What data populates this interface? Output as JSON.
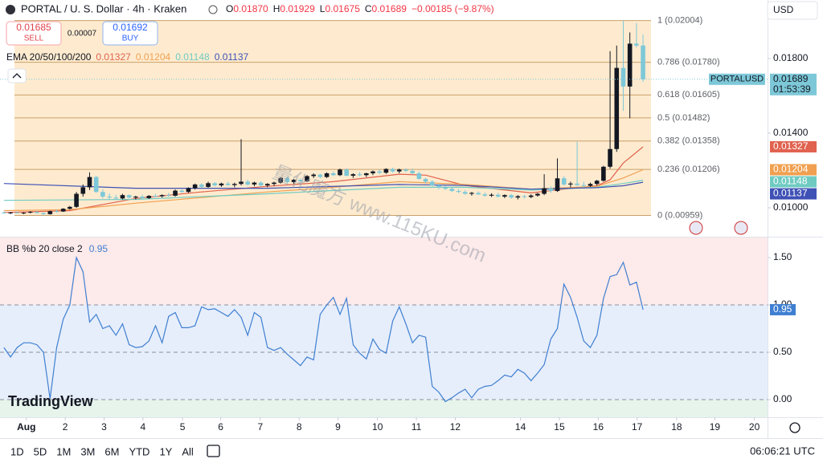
{
  "header": {
    "symbol": "PORTAL / U. S. Dollar · 4h · Kraken",
    "ohlc": [
      {
        "label": "O",
        "value": "0.01870"
      },
      {
        "label": "H",
        "value": "0.01929"
      },
      {
        "label": "L",
        "value": "0.01675"
      },
      {
        "label": "C",
        "value": "0.01689"
      }
    ],
    "change": "−0.00185 (−9.87%)",
    "currency": "USD"
  },
  "trade": {
    "sell_price": "0.01685",
    "sell_label": "SELL",
    "spread": "0.00007",
    "buy_price": "0.01692",
    "buy_label": "BUY"
  },
  "ema_legend": {
    "title": "EMA 20/50/100/200"
  },
  "price_tag": {
    "symbol": "PORTALUSD",
    "countdown": "01:53:39"
  },
  "watermark": "量化魔方 www.115KU.com",
  "logo": "TradingView",
  "toolbar": {
    "ranges": [
      "1D",
      "5D",
      "1M",
      "3M",
      "6M",
      "YTD",
      "1Y",
      "All"
    ],
    "time": "06:06:21 UTC"
  },
  "chart_data": [
    {
      "type": "candlestick",
      "up_color": "#131722",
      "down_color": "#7dc8d8",
      "xlim": [
        -0.6,
        115.9
      ],
      "ylim": [
        0.00845,
        0.02114
      ],
      "yticks": [
        {
          "value": 0.01,
          "label": "0.01000"
        },
        {
          "value": 0.014,
          "label": "0.01400"
        },
        {
          "value": 0.018,
          "label": "0.01800"
        }
      ],
      "fib_color": "#c9a06a",
      "fib_levels": [
        {
          "label": "1 (0.02004)",
          "value": 0.02004
        },
        {
          "label": "0.786 (0.01780)",
          "value": 0.0178
        },
        {
          "label": "0.618 (0.01605)",
          "value": 0.01605
        },
        {
          "label": "0.5 (0.01482)",
          "value": 0.01482
        },
        {
          "label": "0.382 (0.01358)",
          "value": 0.01358
        },
        {
          "label": "0.236 (0.01206)",
          "value": 0.01206
        },
        {
          "label": "0 (0.00959)",
          "value": 0.00959
        }
      ],
      "ohlc": [
        [
          0.00975,
          0.0098,
          0.00968,
          0.00972
        ],
        [
          0.00972,
          0.00978,
          0.00966,
          0.00975
        ],
        [
          0.00975,
          0.00979,
          0.0097,
          0.00971
        ],
        [
          0.00971,
          0.00976,
          0.00966,
          0.00974
        ],
        [
          0.00974,
          0.00982,
          0.0097,
          0.00978
        ],
        [
          0.00978,
          0.00981,
          0.00969,
          0.00972
        ],
        [
          0.00972,
          0.00975,
          0.00962,
          0.00966
        ],
        [
          0.00966,
          0.00985,
          0.00964,
          0.00982
        ],
        [
          0.00982,
          0.0099,
          0.00975,
          0.0098
        ],
        [
          0.0098,
          0.00998,
          0.00978,
          0.00995
        ],
        [
          0.00995,
          0.0101,
          0.0099,
          0.01005
        ],
        [
          0.01005,
          0.01085,
          0.01,
          0.01075
        ],
        [
          0.01075,
          0.01125,
          0.0106,
          0.0111
        ],
        [
          0.0111,
          0.0119,
          0.01095,
          0.01165
        ],
        [
          0.01165,
          0.01172,
          0.0108,
          0.01085
        ],
        [
          0.01085,
          0.011,
          0.0105,
          0.0106
        ],
        [
          0.0106,
          0.01078,
          0.01045,
          0.01055
        ],
        [
          0.01055,
          0.0107,
          0.0104,
          0.0105
        ],
        [
          0.0105,
          0.01075,
          0.01045,
          0.01068
        ],
        [
          0.01068,
          0.01072,
          0.0105,
          0.01055
        ],
        [
          0.01055,
          0.01065,
          0.01045,
          0.0106
        ],
        [
          0.0106,
          0.0107,
          0.0105,
          0.01052
        ],
        [
          0.01052,
          0.01068,
          0.01048,
          0.01064
        ],
        [
          0.01064,
          0.01075,
          0.01058,
          0.01062
        ],
        [
          0.01062,
          0.01072,
          0.01055,
          0.01068
        ],
        [
          0.01068,
          0.0108,
          0.0106,
          0.01065
        ],
        [
          0.01065,
          0.01098,
          0.0106,
          0.01092
        ],
        [
          0.01092,
          0.011,
          0.0108,
          0.01085
        ],
        [
          0.01085,
          0.0111,
          0.0108,
          0.01105
        ],
        [
          0.01105,
          0.0113,
          0.01098,
          0.01125
        ],
        [
          0.01125,
          0.01132,
          0.01108,
          0.01112
        ],
        [
          0.01112,
          0.0114,
          0.01108,
          0.01132
        ],
        [
          0.01132,
          0.01138,
          0.01115,
          0.0112
        ],
        [
          0.0112,
          0.01135,
          0.01112,
          0.0113
        ],
        [
          0.0113,
          0.0114,
          0.01118,
          0.01122
        ],
        [
          0.01122,
          0.01135,
          0.0111,
          0.01128
        ],
        [
          0.01128,
          0.01368,
          0.0112,
          0.0114
        ],
        [
          0.0114,
          0.0115,
          0.01118,
          0.01125
        ],
        [
          0.01125,
          0.0114,
          0.01115,
          0.01135
        ],
        [
          0.01135,
          0.01142,
          0.01115,
          0.0112
        ],
        [
          0.0112,
          0.01132,
          0.0111,
          0.01128
        ],
        [
          0.01128,
          0.0114,
          0.01118,
          0.01135
        ],
        [
          0.01135,
          0.01165,
          0.0113,
          0.0116
        ],
        [
          0.0116,
          0.01168,
          0.0113,
          0.01138
        ],
        [
          0.01138,
          0.01155,
          0.01128,
          0.0115
        ],
        [
          0.0115,
          0.01158,
          0.01135,
          0.01142
        ],
        [
          0.01142,
          0.01175,
          0.01138,
          0.0117
        ],
        [
          0.0117,
          0.01185,
          0.0116,
          0.01178
        ],
        [
          0.01178,
          0.01182,
          0.01158,
          0.01165
        ],
        [
          0.01165,
          0.0119,
          0.0116,
          0.01185
        ],
        [
          0.01185,
          0.01195,
          0.0117,
          0.01175
        ],
        [
          0.01175,
          0.0121,
          0.0117,
          0.01205
        ],
        [
          0.01205,
          0.01212,
          0.01168,
          0.01172
        ],
        [
          0.01172,
          0.01185,
          0.0116,
          0.0118
        ],
        [
          0.0118,
          0.01192,
          0.01168,
          0.01175
        ],
        [
          0.01175,
          0.01188,
          0.01165,
          0.01185
        ],
        [
          0.01185,
          0.012,
          0.01175,
          0.01195
        ],
        [
          0.01195,
          0.01205,
          0.0118,
          0.01188
        ],
        [
          0.01188,
          0.01212,
          0.01182,
          0.01208
        ],
        [
          0.01208,
          0.01215,
          0.01188,
          0.01195
        ],
        [
          0.01195,
          0.0121,
          0.01185,
          0.01205
        ],
        [
          0.01205,
          0.01212,
          0.0119,
          0.01198
        ],
        [
          0.01198,
          0.0121,
          0.0118,
          0.01185
        ],
        [
          0.01185,
          0.01195,
          0.0115,
          0.01155
        ],
        [
          0.01155,
          0.01162,
          0.0113,
          0.0114
        ],
        [
          0.0114,
          0.01148,
          0.01115,
          0.0112
        ],
        [
          0.0112,
          0.0113,
          0.011,
          0.01108
        ],
        [
          0.01108,
          0.01118,
          0.01095,
          0.01102
        ],
        [
          0.01102,
          0.0111,
          0.01085,
          0.0109
        ],
        [
          0.0109,
          0.011,
          0.0108,
          0.01085
        ],
        [
          0.01085,
          0.01095,
          0.0107,
          0.01075
        ],
        [
          0.01075,
          0.01085,
          0.01065,
          0.0108
        ],
        [
          0.0108,
          0.01088,
          0.01068,
          0.01072
        ],
        [
          0.01072,
          0.01082,
          0.0106,
          0.01065
        ],
        [
          0.01065,
          0.01078,
          0.01058,
          0.0107
        ],
        [
          0.0107,
          0.0108,
          0.01055,
          0.0106
        ],
        [
          0.0106,
          0.01072,
          0.01052,
          0.01068
        ],
        [
          0.01068,
          0.01075,
          0.01048,
          0.01055
        ],
        [
          0.01055,
          0.01068,
          0.01045,
          0.01062
        ],
        [
          0.01062,
          0.0107,
          0.0105,
          0.01058
        ],
        [
          0.01058,
          0.01072,
          0.01052,
          0.01066
        ],
        [
          0.01066,
          0.0108,
          0.0106,
          0.01075
        ],
        [
          0.01075,
          0.0118,
          0.01068,
          0.01105
        ],
        [
          0.01105,
          0.01115,
          0.0108,
          0.0109
        ],
        [
          0.0109,
          0.01265,
          0.01085,
          0.01158
        ],
        [
          0.01158,
          0.0117,
          0.01118,
          0.01125
        ],
        [
          0.01125,
          0.0114,
          0.0111,
          0.0113
        ],
        [
          0.0113,
          0.01355,
          0.01118,
          0.01122
        ],
        [
          0.01122,
          0.0114,
          0.0111,
          0.01118
        ],
        [
          0.01118,
          0.01135,
          0.01112,
          0.01128
        ],
        [
          0.01128,
          0.0115,
          0.0112,
          0.01145
        ],
        [
          0.01145,
          0.01225,
          0.0114,
          0.0122
        ],
        [
          0.0122,
          0.0184,
          0.0121,
          0.01315
        ],
        [
          0.01315,
          0.0187,
          0.013,
          0.0175
        ],
        [
          0.0175,
          0.02004,
          0.0152,
          0.0165
        ],
        [
          0.0165,
          0.0194,
          0.0148,
          0.0188
        ],
        [
          0.0188,
          0.0199,
          0.0186,
          0.0187
        ],
        [
          0.0187,
          0.01929,
          0.01675,
          0.01689
        ]
      ],
      "series": [
        {
          "color": "#e0624f",
          "x": [
            0,
            10,
            20,
            30,
            40,
            50,
            60,
            64,
            70,
            80,
            85,
            90,
            92,
            94,
            97
          ],
          "values": [
            0.00975,
            0.00985,
            0.0105,
            0.01085,
            0.01115,
            0.0114,
            0.0118,
            0.01175,
            0.0112,
            0.0108,
            0.011,
            0.01118,
            0.0115,
            0.0124,
            0.01327
          ]
        },
        {
          "color": "#f0a050",
          "x": [
            0,
            10,
            20,
            30,
            40,
            50,
            60,
            70,
            80,
            90,
            94,
            97
          ],
          "values": [
            0.00985,
            0.0099,
            0.01025,
            0.01055,
            0.01085,
            0.0111,
            0.0114,
            0.01125,
            0.011,
            0.01115,
            0.0116,
            0.01204
          ]
        },
        {
          "color": "#6fcbc2",
          "x": [
            0,
            20,
            40,
            60,
            70,
            80,
            90,
            94,
            97
          ],
          "values": [
            0.0104,
            0.01045,
            0.01075,
            0.0111,
            0.0111,
            0.01095,
            0.0111,
            0.0113,
            0.01148
          ]
        },
        {
          "color": "#3f51b5",
          "x": [
            0,
            20,
            40,
            60,
            70,
            80,
            90,
            94,
            97
          ],
          "values": [
            0.0113,
            0.01105,
            0.01105,
            0.01125,
            0.0112,
            0.011,
            0.01108,
            0.01118,
            0.01137
          ]
        }
      ]
    },
    {
      "type": "line",
      "title": "BB %b 20 close 2",
      "color": "#3f7fd1",
      "xlim": [
        -0.6,
        115.9
      ],
      "ylim": [
        -0.186,
        1.712
      ],
      "yticks": [
        {
          "value": 1.5,
          "label": "1.50"
        },
        {
          "value": 1,
          "label": "1.00"
        },
        {
          "value": 0.5,
          "label": "0.50"
        },
        {
          "value": 0,
          "label": "0.00"
        }
      ],
      "levels": [
        1,
        0.5,
        0
      ],
      "xticks": [
        {
          "value": 3.4,
          "label": "Aug"
        },
        {
          "value": 9.3,
          "label": "2"
        },
        {
          "value": 15.2,
          "label": "3"
        },
        {
          "value": 21.1,
          "label": "4"
        },
        {
          "value": 27.1,
          "label": "5"
        },
        {
          "value": 32.9,
          "label": "6"
        },
        {
          "value": 38.9,
          "label": "7"
        },
        {
          "value": 44.8,
          "label": "8"
        },
        {
          "value": 50.7,
          "label": "9"
        },
        {
          "value": 56.7,
          "label": "10"
        },
        {
          "value": 62.6,
          "label": "11"
        },
        {
          "value": 68.5,
          "label": "12"
        },
        {
          "value": 78.4,
          "label": "14"
        },
        {
          "value": 84.3,
          "label": "15"
        },
        {
          "value": 90.2,
          "label": "16"
        },
        {
          "value": 96.1,
          "label": "17"
        },
        {
          "value": 102.1,
          "label": "18"
        },
        {
          "value": 107.9,
          "label": "19"
        },
        {
          "value": 113.9,
          "label": "20"
        }
      ],
      "values": [
        0.55,
        0.45,
        0.55,
        0.6,
        0.6,
        0.58,
        0.5,
        0.01,
        0.55,
        0.85,
        1.0,
        1.5,
        1.35,
        0.82,
        0.9,
        0.75,
        0.78,
        0.68,
        0.8,
        0.58,
        0.55,
        0.56,
        0.62,
        0.78,
        0.6,
        0.88,
        0.92,
        0.76,
        0.76,
        0.78,
        0.98,
        0.95,
        0.96,
        0.92,
        0.88,
        0.95,
        0.87,
        0.68,
        0.92,
        0.87,
        0.55,
        0.52,
        0.55,
        0.48,
        0.42,
        0.36,
        0.45,
        0.42,
        0.9,
        1.0,
        1.08,
        0.9,
        1.07,
        0.58,
        0.49,
        0.43,
        0.64,
        0.53,
        0.49,
        0.83,
        0.98,
        0.8,
        0.6,
        0.68,
        0.66,
        0.14,
        0.08,
        -0.02,
        0.02,
        0.07,
        0.11,
        0.02,
        0.11,
        0.14,
        0.15,
        0.2,
        0.26,
        0.24,
        0.32,
        0.28,
        0.2,
        0.28,
        0.37,
        0.64,
        0.75,
        1.22,
        1.08,
        0.87,
        0.62,
        0.55,
        0.68,
        1.07,
        1.3,
        1.32,
        1.45,
        1.21,
        1.24,
        0.95
      ]
    }
  ]
}
